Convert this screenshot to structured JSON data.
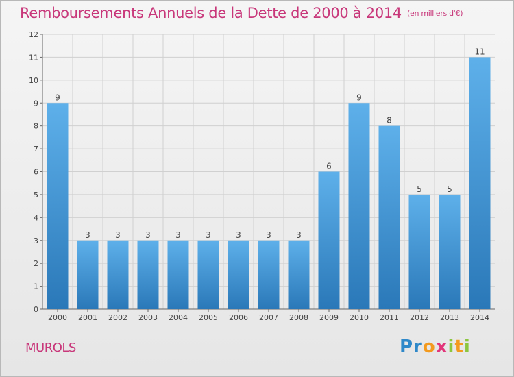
{
  "header": {
    "title": "Remboursements Annuels de la Dette de 2000 à 2014",
    "unit": "(en milliers d'€)"
  },
  "footer": {
    "commune": "MUROLS",
    "logo_text": "Proxiti"
  },
  "colors": {
    "title": "#c8377a",
    "bar_top": "#5eb0ea",
    "bar_bottom": "#2a78b8",
    "grid": "#d0d0d0"
  },
  "chart_data": {
    "type": "bar",
    "title": "Remboursements Annuels de la Dette de 2000 à 2014",
    "subtitle": "(en milliers d'€)",
    "xlabel": "",
    "ylabel": "",
    "categories": [
      "2000",
      "2001",
      "2002",
      "2003",
      "2004",
      "2005",
      "2006",
      "2007",
      "2008",
      "2009",
      "2010",
      "2011",
      "2012",
      "2013",
      "2014"
    ],
    "values": [
      9,
      3,
      3,
      3,
      3,
      3,
      3,
      3,
      3,
      6,
      9,
      8,
      5,
      5,
      11
    ],
    "data_labels": [
      "9",
      "3",
      "3",
      "3",
      "3",
      "3",
      "3",
      "3",
      "3",
      "6",
      "9",
      "8",
      "5",
      "5",
      "11"
    ],
    "ylim": [
      0,
      12
    ],
    "yticks": [
      0,
      1,
      2,
      3,
      4,
      5,
      6,
      7,
      8,
      9,
      10,
      11,
      12
    ],
    "grid": true,
    "legend": "none"
  }
}
